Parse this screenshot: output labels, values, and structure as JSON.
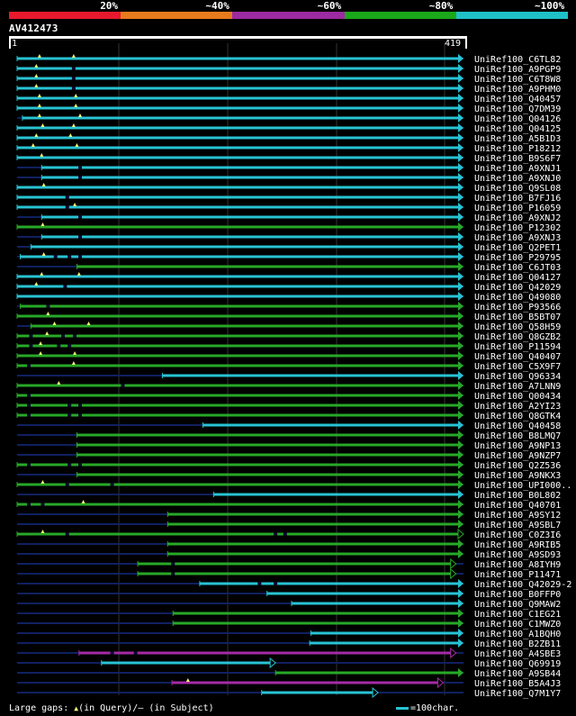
{
  "legend": {
    "colors": [
      "#e8192c",
      "#e87b1c",
      "#9c2aa0",
      "#1aa81a",
      "#1fc0c8"
    ],
    "labels": [
      "20%",
      "~40%",
      "~60%",
      "~80%",
      "~100%"
    ]
  },
  "query": {
    "name": "AV412473",
    "start": "1",
    "end": "419",
    "length": 419
  },
  "colors": {
    "cyan": "#27c3d3",
    "green": "#27a827",
    "purple": "#a52aa5",
    "navy": "#102060",
    "tri": "#f5f57a"
  },
  "hits": [
    {
      "name": "UniRef100_C6TL82",
      "color": "cyan",
      "start": 1,
      "end": 419,
      "end_mark": "arrow",
      "tris": [
        22,
        54
      ],
      "gaps": []
    },
    {
      "name": "UniRef100_A9PGP9",
      "color": "cyan",
      "start": 1,
      "end": 419,
      "end_mark": "arrow",
      "tris": [
        19
      ],
      "gaps": [
        54
      ]
    },
    {
      "name": "UniRef100_C6T8W8",
      "color": "cyan",
      "start": 1,
      "end": 419,
      "end_mark": "arrow",
      "tris": [
        19
      ],
      "gaps": [
        54
      ]
    },
    {
      "name": "UniRef100_A9PHM0",
      "color": "cyan",
      "start": 1,
      "end": 419,
      "end_mark": "arrow",
      "tris": [
        19
      ],
      "gaps": [
        54
      ]
    },
    {
      "name": "UniRef100_Q40457",
      "color": "cyan",
      "start": 1,
      "end": 419,
      "end_mark": "arrow",
      "tris": [
        22,
        56
      ],
      "gaps": []
    },
    {
      "name": "UniRef100_Q7DM39",
      "color": "cyan",
      "start": 1,
      "end": 419,
      "end_mark": "arrow",
      "tris": [
        22,
        56
      ],
      "gaps": []
    },
    {
      "name": "UniRef100_Q04126",
      "color": "cyan",
      "start": 6,
      "end": 419,
      "end_mark": "arrow",
      "tris": [
        22,
        60
      ],
      "gaps": []
    },
    {
      "name": "UniRef100_Q04125",
      "color": "cyan",
      "start": 1,
      "end": 419,
      "end_mark": "arrow",
      "tris": [
        25,
        54
      ],
      "gaps": []
    },
    {
      "name": "UniRef100_A5B1D3",
      "color": "cyan",
      "start": 1,
      "end": 419,
      "end_mark": "arrow",
      "tris": [
        19,
        51
      ],
      "gaps": []
    },
    {
      "name": "UniRef100_P18212",
      "color": "cyan",
      "start": 1,
      "end": 419,
      "end_mark": "arrow",
      "tris": [
        16,
        57
      ],
      "gaps": []
    },
    {
      "name": "UniRef100_B9S6F7",
      "color": "cyan",
      "start": 1,
      "end": 419,
      "end_mark": "arrow",
      "tris": [
        24
      ],
      "gaps": []
    },
    {
      "name": "UniRef100_A9XNJ1",
      "color": "cyan",
      "start": 24,
      "end": 419,
      "end_mark": "arrow",
      "tris": [],
      "gaps": [
        60
      ]
    },
    {
      "name": "UniRef100_A9XNJ0",
      "color": "cyan",
      "start": 24,
      "end": 419,
      "end_mark": "arrow",
      "tris": [],
      "gaps": [
        60
      ]
    },
    {
      "name": "UniRef100_Q9SL08",
      "color": "cyan",
      "start": 1,
      "end": 419,
      "end_mark": "arrow",
      "tris": [
        26
      ],
      "gaps": []
    },
    {
      "name": "UniRef100_B7FJ16",
      "color": "cyan",
      "start": 1,
      "end": 419,
      "end_mark": "arrow",
      "tris": [],
      "gaps": [
        48
      ]
    },
    {
      "name": "UniRef100_P16059",
      "color": "cyan",
      "start": 1,
      "end": 419,
      "end_mark": "arrow",
      "tris": [
        55
      ],
      "gaps": [
        48
      ]
    },
    {
      "name": "UniRef100_A9XNJ2",
      "color": "cyan",
      "start": 24,
      "end": 419,
      "end_mark": "arrow",
      "tris": [],
      "gaps": [
        60
      ]
    },
    {
      "name": "UniRef100_P12302",
      "color": "green",
      "start": 1,
      "end": 419,
      "end_mark": "arrow",
      "tris": [
        25
      ],
      "gaps": []
    },
    {
      "name": "UniRef100_A9XNJ3",
      "color": "cyan",
      "start": 24,
      "end": 419,
      "end_mark": "arrow",
      "tris": [],
      "gaps": [
        60
      ]
    },
    {
      "name": "UniRef100_Q2PET1",
      "color": "cyan",
      "start": 14,
      "end": 419,
      "end_mark": "arrow",
      "tris": [],
      "gaps": []
    },
    {
      "name": "UniRef100_P29795",
      "color": "cyan",
      "start": 4,
      "end": 419,
      "end_mark": "arrow",
      "tris": [
        26
      ],
      "gaps": [
        37,
        50,
        60
      ]
    },
    {
      "name": "UniRef100_C6JT03",
      "color": "green",
      "start": 57,
      "end": 419,
      "end_mark": "arrow",
      "tris": [],
      "gaps": []
    },
    {
      "name": "UniRef100_Q04127",
      "color": "cyan",
      "start": 1,
      "end": 419,
      "end_mark": "arrow",
      "tris": [
        24,
        59
      ],
      "gaps": []
    },
    {
      "name": "UniRef100_Q42029",
      "color": "cyan",
      "start": 1,
      "end": 419,
      "end_mark": "arrow",
      "tris": [
        19
      ],
      "gaps": [
        46
      ]
    },
    {
      "name": "UniRef100_Q49080",
      "color": "cyan",
      "start": 1,
      "end": 419,
      "end_mark": "arrow",
      "tris": [],
      "gaps": []
    },
    {
      "name": "UniRef100_P93566",
      "color": "green",
      "start": 4,
      "end": 419,
      "end_mark": "arrow",
      "tris": [],
      "gaps": [
        30
      ]
    },
    {
      "name": "UniRef100_B5BT07",
      "color": "green",
      "start": 1,
      "end": 419,
      "end_mark": "arrow",
      "tris": [
        30
      ],
      "gaps": []
    },
    {
      "name": "UniRef100_Q58H59",
      "color": "green",
      "start": 14,
      "end": 419,
      "end_mark": "arrow",
      "tris": [
        36,
        68
      ],
      "gaps": []
    },
    {
      "name": "UniRef100_Q8GZB2",
      "color": "green",
      "start": 1,
      "end": 419,
      "end_mark": "arrow",
      "tris": [
        29
      ],
      "gaps": [
        14,
        44,
        55
      ]
    },
    {
      "name": "UniRef100_P11594",
      "color": "green",
      "start": 1,
      "end": 419,
      "end_mark": "arrow",
      "tris": [
        23
      ],
      "gaps": [
        14,
        40,
        50
      ]
    },
    {
      "name": "UniRef100_Q40407",
      "color": "green",
      "start": 1,
      "end": 419,
      "end_mark": "arrow",
      "tris": [
        23,
        55
      ],
      "gaps": []
    },
    {
      "name": "UniRef100_C5X9F7",
      "color": "green",
      "start": 1,
      "end": 419,
      "end_mark": "arrow",
      "tris": [
        54
      ],
      "gaps": [
        12
      ]
    },
    {
      "name": "UniRef100_Q96334",
      "color": "cyan",
      "start": 137,
      "end": 419,
      "end_mark": "arrow",
      "tris": [],
      "gaps": []
    },
    {
      "name": "UniRef100_A7LNN9",
      "color": "green",
      "start": 1,
      "end": 419,
      "end_mark": "arrow",
      "tris": [
        40
      ],
      "gaps": [
        100
      ]
    },
    {
      "name": "UniRef100_Q00434",
      "color": "green",
      "start": 1,
      "end": 419,
      "end_mark": "arrow",
      "tris": [],
      "gaps": [
        12
      ]
    },
    {
      "name": "UniRef100_A2YI23",
      "color": "green",
      "start": 1,
      "end": 419,
      "end_mark": "arrow",
      "tris": [],
      "gaps": [
        12,
        50,
        60
      ]
    },
    {
      "name": "UniRef100_Q8GTK4",
      "color": "green",
      "start": 1,
      "end": 419,
      "end_mark": "arrow",
      "tris": [],
      "gaps": [
        12,
        50,
        60
      ]
    },
    {
      "name": "UniRef100_Q40458",
      "color": "cyan",
      "start": 175,
      "end": 419,
      "end_mark": "arrow",
      "tris": [],
      "gaps": []
    },
    {
      "name": "UniRef100_B8LMQ7",
      "color": "green",
      "start": 57,
      "end": 419,
      "end_mark": "arrow",
      "tris": [],
      "gaps": []
    },
    {
      "name": "UniRef100_A9NP13",
      "color": "green",
      "start": 57,
      "end": 419,
      "end_mark": "arrow",
      "tris": [],
      "gaps": []
    },
    {
      "name": "UniRef100_A9NZP7",
      "color": "green",
      "start": 57,
      "end": 419,
      "end_mark": "arrow",
      "tris": [],
      "gaps": []
    },
    {
      "name": "UniRef100_Q2Z536",
      "color": "green",
      "start": 1,
      "end": 419,
      "end_mark": "arrow",
      "tris": [],
      "gaps": [
        12,
        50,
        60
      ]
    },
    {
      "name": "UniRef100_A9NKX3",
      "color": "green",
      "start": 57,
      "end": 419,
      "end_mark": "arrow",
      "tris": [],
      "gaps": []
    },
    {
      "name": "UniRef100_UPI000..",
      "color": "green",
      "start": 1,
      "end": 419,
      "end_mark": "arrow",
      "tris": [
        25
      ],
      "gaps": [
        48,
        90
      ]
    },
    {
      "name": "UniRef100_B0L802",
      "color": "cyan",
      "start": 185,
      "end": 419,
      "end_mark": "arrow",
      "tris": [],
      "gaps": []
    },
    {
      "name": "UniRef100_Q40701",
      "color": "green",
      "start": 1,
      "end": 419,
      "end_mark": "arrow",
      "tris": [
        63
      ],
      "gaps": [
        12,
        25
      ]
    },
    {
      "name": "UniRef100_A9SY12",
      "color": "green",
      "start": 142,
      "end": 419,
      "end_mark": "arrow",
      "tris": [],
      "gaps": []
    },
    {
      "name": "UniRef100_A9SBL7",
      "color": "green",
      "start": 142,
      "end": 419,
      "end_mark": "arrow",
      "tris": [],
      "gaps": []
    },
    {
      "name": "UniRef100_C0Z3I6",
      "color": "green",
      "start": 1,
      "end": 419,
      "end_mark": "open-arrow",
      "tris": [
        25
      ],
      "gaps": [
        48,
        243,
        252
      ]
    },
    {
      "name": "UniRef100_A9RIB5",
      "color": "green",
      "start": 142,
      "end": 419,
      "end_mark": "arrow",
      "tris": [],
      "gaps": []
    },
    {
      "name": "UniRef100_A9SD93",
      "color": "green",
      "start": 142,
      "end": 419,
      "end_mark": "arrow",
      "tris": [],
      "gaps": []
    },
    {
      "name": "UniRef100_A8IYH9",
      "color": "green",
      "start": 114,
      "end": 412,
      "end_mark": "open-arrow",
      "tris": [],
      "gaps": [
        147
      ]
    },
    {
      "name": "UniRef100_P11471",
      "color": "green",
      "start": 114,
      "end": 412,
      "end_mark": "open-arrow",
      "tris": [],
      "gaps": [
        147
      ]
    },
    {
      "name": "UniRef100_Q42029-2",
      "color": "cyan",
      "start": 172,
      "end": 419,
      "end_mark": "arrow",
      "tris": [],
      "gaps": [
        228,
        243
      ]
    },
    {
      "name": "UniRef100_B0FFP0",
      "color": "cyan",
      "start": 235,
      "end": 419,
      "end_mark": "arrow",
      "tris": [],
      "gaps": []
    },
    {
      "name": "UniRef100_Q9MAW2",
      "color": "cyan",
      "start": 258,
      "end": 419,
      "end_mark": "arrow",
      "tris": [],
      "gaps": []
    },
    {
      "name": "UniRef100_C1EG21",
      "color": "green",
      "start": 147,
      "end": 419,
      "end_mark": "arrow",
      "tris": [],
      "gaps": []
    },
    {
      "name": "UniRef100_C1MWZ0",
      "color": "green",
      "start": 147,
      "end": 419,
      "end_mark": "arrow",
      "tris": [],
      "gaps": []
    },
    {
      "name": "UniRef100_A1BQH0",
      "color": "cyan",
      "start": 276,
      "end": 419,
      "end_mark": "arrow",
      "tris": [],
      "gaps": []
    },
    {
      "name": "UniRef100_B2ZB11",
      "color": "cyan",
      "start": 275,
      "end": 419,
      "end_mark": "arrow",
      "tris": [],
      "gaps": []
    },
    {
      "name": "UniRef100_A4SBE3",
      "color": "purple",
      "start": 59,
      "end": 412,
      "end_mark": "open-arrow",
      "tris": [],
      "gaps": [
        90,
        112
      ]
    },
    {
      "name": "UniRef100_Q69919",
      "color": "cyan",
      "start": 80,
      "end": 243,
      "end_mark": "open-arrow",
      "tris": [],
      "gaps": []
    },
    {
      "name": "UniRef100_A9SB44",
      "color": "green",
      "start": 243,
      "end": 419,
      "end_mark": "arrow",
      "tris": [],
      "gaps": []
    },
    {
      "name": "UniRef100_B5A4J3",
      "color": "purple",
      "start": 146,
      "end": 400,
      "end_mark": "open-arrow",
      "tris": [
        161
      ],
      "gaps": []
    },
    {
      "name": "UniRef100_Q7M1Y7",
      "color": "cyan",
      "start": 230,
      "end": 339,
      "end_mark": "open-arrow",
      "tris": [],
      "gaps": []
    }
  ],
  "footer": {
    "large_gaps": "Large gaps: ",
    "tri_glyph": "▲",
    "in_query": "(in Query)/",
    "dash": "–",
    "in_subject": " (in Subject)",
    "scale": "=100char."
  }
}
